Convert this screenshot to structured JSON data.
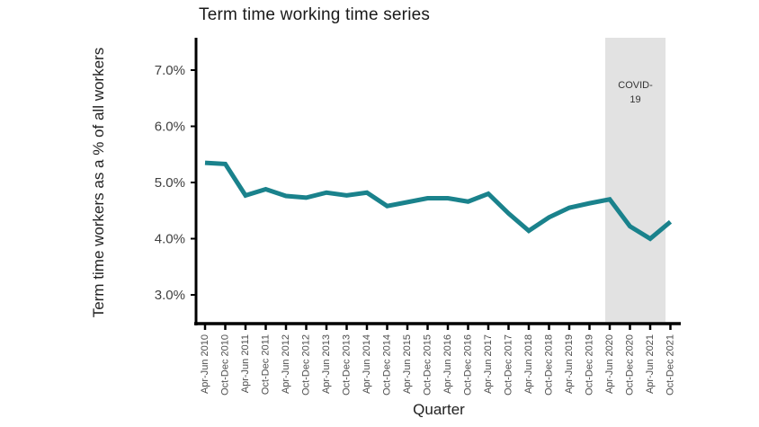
{
  "chart_data": {
    "type": "line",
    "title": "Term time working time series",
    "xlabel": "Quarter",
    "ylabel": "Term time workers as a % of all workers",
    "categories": [
      "Apr-Jun 2010",
      "Oct-Dec 2010",
      "Apr-Jun 2011",
      "Oct-Dec 2011",
      "Apr-Jun 2012",
      "Oct-Dec 2012",
      "Apr-Jun 2013",
      "Oct-Dec 2013",
      "Apr-Jun 2014",
      "Oct-Dec 2014",
      "Apr-Jun 2015",
      "Oct-Dec 2015",
      "Apr-Jun 2016",
      "Oct-Dec 2016",
      "Apr-Jun 2017",
      "Oct-Dec 2017",
      "Apr-Jun 2018",
      "Oct-Dec 2018",
      "Apr-Jun 2019",
      "Oct-Dec 2019",
      "Apr-Jun 2020",
      "Oct-Dec 2020",
      "Apr-Jun 2021",
      "Oct-Dec 2021"
    ],
    "values": [
      5.35,
      5.33,
      4.77,
      4.88,
      4.76,
      4.73,
      4.82,
      4.77,
      4.82,
      4.58,
      4.65,
      4.72,
      4.72,
      4.66,
      4.8,
      4.45,
      4.14,
      4.38,
      4.55,
      4.63,
      4.7,
      4.22,
      4.0,
      4.3
    ],
    "unit": "%",
    "ylim": [
      2.5,
      7.58
    ],
    "yticks": [
      {
        "value": 3.0,
        "label": "3.0%"
      },
      {
        "value": 4.0,
        "label": "4.0%"
      },
      {
        "value": 5.0,
        "label": "5.0%"
      },
      {
        "value": 6.0,
        "label": "6.0%"
      },
      {
        "value": 7.0,
        "label": "7.0%"
      }
    ],
    "grid": false,
    "legend": "none",
    "line_color": "#1a828c",
    "axis_color": "#000000",
    "tick_label_color": "#4d4d4d",
    "annotation": {
      "label_line1": "COVID-",
      "label_line2": "19",
      "band_color": "#e2e2e2",
      "x_start_index": 19.78,
      "x_end_index": 22.76
    }
  }
}
